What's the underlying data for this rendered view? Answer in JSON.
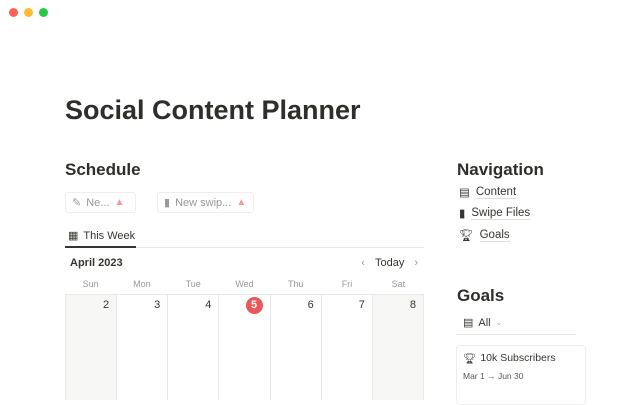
{
  "window": {
    "controls": [
      {
        "name": "close",
        "color": "#ff5f57"
      },
      {
        "name": "minimize",
        "color": "#febc2e"
      },
      {
        "name": "zoom",
        "color": "#28c840"
      }
    ]
  },
  "page": {
    "title": "Social Content Planner"
  },
  "schedule": {
    "heading": "Schedule",
    "buttons": [
      {
        "label": "Ne...",
        "icon": "compose-icon"
      },
      {
        "label": "New swip...",
        "icon": "bookmark-icon"
      }
    ],
    "tab": "This Week",
    "month": "April 2023",
    "today_label": "Today",
    "weekdays": [
      "Sun",
      "Mon",
      "Tue",
      "Wed",
      "Thu",
      "Fri",
      "Sat"
    ],
    "dates": [
      "2",
      "3",
      "4",
      "5",
      "6",
      "7",
      "8"
    ],
    "today": "5"
  },
  "navigation": {
    "heading": "Navigation",
    "items": [
      {
        "label": "Content",
        "icon": "layout-icon"
      },
      {
        "label": "Swipe Files",
        "icon": "bookmark-icon"
      },
      {
        "label": "Goals",
        "icon": "trophy-icon"
      }
    ]
  },
  "goals": {
    "heading": "Goals",
    "filter": "All",
    "cards": [
      {
        "name": "10k Subscribers",
        "dates": "Mar 1 → Jun 30"
      }
    ]
  }
}
